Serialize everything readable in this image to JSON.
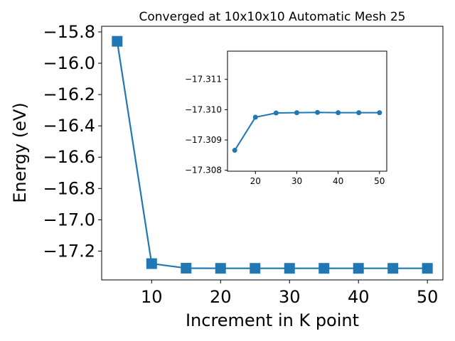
{
  "chart_data": {
    "type": "line",
    "title": "Converged at 10x10x10 Automatic Mesh 25",
    "xlabel": "Increment in K point",
    "ylabel": "Energy (eV)",
    "color": "#1f77b4",
    "main": {
      "x": [
        5,
        10,
        15,
        20,
        25,
        30,
        35,
        40,
        45,
        50
      ],
      "y": [
        -15.86,
        -17.28,
        -17.309,
        -17.3101,
        -17.3101,
        -17.3101,
        -17.3101,
        -17.3101,
        -17.3101,
        -17.3101
      ],
      "xlim": [
        2.75,
        52.25
      ],
      "ylim": [
        -17.384,
        -15.764
      ],
      "x_ticks": [
        10,
        20,
        30,
        40,
        50
      ],
      "x_tick_labels": [
        "10",
        "20",
        "30",
        "40",
        "50"
      ],
      "y_ticks": [
        -15.8,
        -16.0,
        -16.2,
        -16.4,
        -16.6,
        -16.8,
        -17.0,
        -17.2
      ],
      "y_tick_labels": [
        "−15.8",
        "−16.0",
        "−16.2",
        "−16.4",
        "−16.6",
        "−16.8",
        "−17.0",
        "−17.2"
      ],
      "marker": "square"
    },
    "inset": {
      "x": [
        15,
        20,
        25,
        30,
        35,
        40,
        45,
        50
      ],
      "y": [
        -17.30866,
        -17.30975,
        -17.30989,
        -17.3099,
        -17.30991,
        -17.3099,
        -17.3099,
        -17.3099
      ],
      "xlim": [
        13.25,
        51.75
      ],
      "ylim_bottom_top": [
        -17.30797,
        -17.31193
      ],
      "x_ticks": [
        20,
        30,
        40,
        50
      ],
      "x_tick_labels": [
        "20",
        "30",
        "40",
        "50"
      ],
      "y_ticks": [
        -17.311,
        -17.31,
        -17.309,
        -17.308
      ],
      "y_tick_labels": [
        "−17.311",
        "−17.310",
        "−17.309",
        "−17.308"
      ],
      "marker": "circle"
    }
  }
}
